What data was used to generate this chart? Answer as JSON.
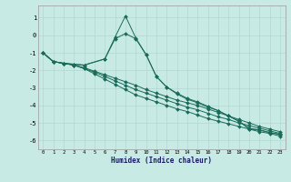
{
  "xlabel": "Humidex (Indice chaleur)",
  "xlim": [
    -0.5,
    23.5
  ],
  "ylim": [
    -6.5,
    1.7
  ],
  "yticks": [
    1,
    0,
    -1,
    -2,
    -3,
    -4,
    -5,
    -6
  ],
  "xticks": [
    0,
    1,
    2,
    3,
    4,
    5,
    6,
    7,
    8,
    9,
    10,
    11,
    12,
    13,
    14,
    15,
    16,
    17,
    18,
    19,
    20,
    21,
    22,
    23
  ],
  "background_color": "#c8eae4",
  "line_color": "#1a6b5a",
  "grid_color": "#b0d8d0",
  "lines": [
    {
      "x": [
        0,
        1,
        2,
        3,
        4,
        5,
        6,
        7,
        8,
        9,
        10,
        11,
        12,
        13,
        14,
        15,
        16,
        17,
        18,
        19,
        20,
        21,
        22,
        23
      ],
      "y": [
        -1.0,
        -1.5,
        -1.6,
        -1.7,
        -1.85,
        -2.05,
        -2.25,
        -2.45,
        -2.65,
        -2.85,
        -3.1,
        -3.3,
        -3.5,
        -3.7,
        -3.85,
        -4.0,
        -4.2,
        -4.4,
        -4.6,
        -4.8,
        -5.0,
        -5.2,
        -5.35,
        -5.5
      ]
    },
    {
      "x": [
        0,
        1,
        2,
        3,
        4,
        5,
        6,
        7,
        8,
        9,
        10,
        11,
        12,
        13,
        14,
        15,
        16,
        17,
        18,
        19,
        20,
        21,
        22,
        23
      ],
      "y": [
        -1.0,
        -1.5,
        -1.6,
        -1.7,
        -1.9,
        -2.1,
        -2.35,
        -2.6,
        -2.85,
        -3.1,
        -3.3,
        -3.5,
        -3.7,
        -3.9,
        -4.1,
        -4.25,
        -4.45,
        -4.65,
        -4.8,
        -5.0,
        -5.15,
        -5.3,
        -5.45,
        -5.6
      ]
    },
    {
      "x": [
        0,
        1,
        2,
        3,
        4,
        5,
        6,
        7,
        8,
        9,
        10,
        11,
        12,
        13,
        14,
        15,
        16,
        17,
        18,
        19,
        20,
        21,
        22,
        23
      ],
      "y": [
        -1.0,
        -1.5,
        -1.6,
        -1.7,
        -1.9,
        -2.2,
        -2.5,
        -2.8,
        -3.1,
        -3.4,
        -3.6,
        -3.8,
        -4.0,
        -4.2,
        -4.35,
        -4.55,
        -4.75,
        -4.9,
        -5.05,
        -5.2,
        -5.35,
        -5.5,
        -5.6,
        -5.75
      ]
    },
    {
      "x": [
        0,
        1,
        2,
        3,
        4,
        6,
        7,
        8,
        9,
        10,
        11,
        12,
        13,
        14,
        15,
        16,
        17,
        18,
        19,
        20,
        21,
        22,
        23
      ],
      "y": [
        -1.0,
        -1.5,
        -1.6,
        -1.65,
        -1.7,
        -1.35,
        -0.2,
        0.1,
        -0.2,
        -1.1,
        -2.35,
        -2.95,
        -3.3,
        -3.6,
        -3.8,
        -4.05,
        -4.3,
        -4.6,
        -4.9,
        -5.3,
        -5.4,
        -5.55,
        -5.65
      ]
    },
    {
      "x": [
        0,
        1,
        2,
        3,
        4,
        6,
        7,
        8,
        9,
        10,
        11,
        12,
        13,
        14,
        15,
        16,
        17,
        18,
        19,
        20,
        21,
        22,
        23
      ],
      "y": [
        -1.0,
        -1.5,
        -1.6,
        -1.65,
        -1.7,
        -1.35,
        -0.1,
        1.1,
        -0.15,
        -1.1,
        -2.35,
        -2.95,
        -3.35,
        -3.65,
        -3.85,
        -4.1,
        -4.3,
        -4.6,
        -4.9,
        -5.35,
        -5.4,
        -5.55,
        -5.65
      ]
    }
  ]
}
